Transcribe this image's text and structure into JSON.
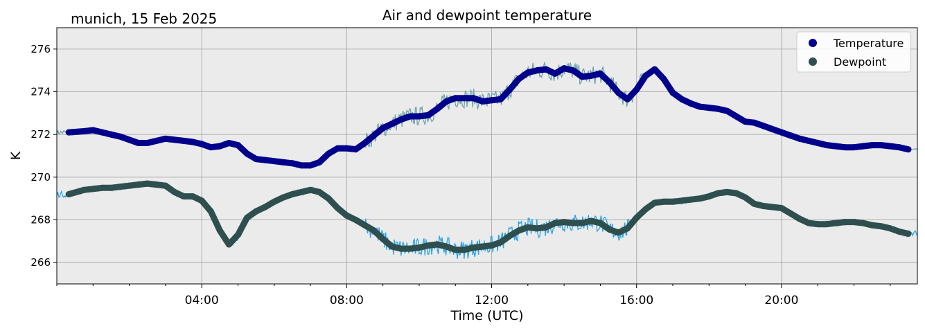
{
  "chart_data": {
    "type": "line",
    "title": "Air and dewpoint temperature",
    "subtitle": "munich, 15 Feb 2025",
    "xlabel": "Time (UTC)",
    "ylabel": "K",
    "x_unit": "hours",
    "xlim": [
      0,
      23.75
    ],
    "ylim": [
      265,
      277
    ],
    "xticks": [
      4,
      8,
      12,
      16,
      20
    ],
    "xtick_labels": [
      "04:00",
      "08:00",
      "12:00",
      "16:00",
      "20:00"
    ],
    "yticks": [
      266,
      268,
      270,
      272,
      274,
      276
    ],
    "ytick_labels": [
      "266",
      "268",
      "270",
      "272",
      "274",
      "276"
    ],
    "grid": true,
    "legend_position": "top-right",
    "background": "#ebebeb",
    "series": [
      {
        "name": "Temperature",
        "marker_color": "#00008b",
        "raw_color": "#6fa3a8",
        "x": [
          0.33,
          0.75,
          1,
          1.25,
          1.5,
          1.75,
          2,
          2.25,
          2.5,
          2.75,
          3,
          3.25,
          3.5,
          3.75,
          4,
          4.25,
          4.5,
          4.75,
          5,
          5.25,
          5.5,
          5.75,
          6,
          6.25,
          6.5,
          6.75,
          7,
          7.25,
          7.5,
          7.75,
          8,
          8.25,
          8.5,
          8.75,
          9,
          9.25,
          9.5,
          9.75,
          10,
          10.25,
          10.5,
          10.75,
          11,
          11.25,
          11.5,
          11.75,
          12,
          12.25,
          12.5,
          12.75,
          13,
          13.25,
          13.5,
          13.75,
          14,
          14.25,
          14.5,
          14.75,
          15,
          15.25,
          15.5,
          15.75,
          16,
          16.25,
          16.5,
          16.75,
          17,
          17.25,
          17.5,
          17.75,
          18,
          18.25,
          18.5,
          18.75,
          19,
          19.25,
          19.5,
          19.75,
          20,
          20.25,
          20.5,
          20.75,
          21,
          21.25,
          21.5,
          21.75,
          22,
          22.25,
          22.5,
          22.75,
          23,
          23.25,
          23.5
        ],
        "values": [
          272.1,
          272.15,
          272.2,
          272.1,
          272.0,
          271.9,
          271.75,
          271.6,
          271.6,
          271.7,
          271.8,
          271.75,
          271.7,
          271.65,
          271.55,
          271.4,
          271.45,
          271.6,
          271.5,
          271.1,
          270.85,
          270.8,
          270.75,
          270.7,
          270.65,
          270.55,
          270.55,
          270.7,
          271.1,
          271.35,
          271.35,
          271.3,
          271.6,
          271.95,
          272.3,
          272.5,
          272.7,
          272.85,
          272.85,
          272.9,
          273.2,
          273.55,
          273.7,
          273.7,
          273.7,
          273.55,
          273.6,
          273.65,
          274.1,
          274.6,
          274.9,
          275.0,
          275.05,
          274.85,
          275.1,
          275.0,
          274.7,
          274.75,
          274.85,
          274.45,
          273.95,
          273.65,
          274.1,
          274.75,
          275.05,
          274.6,
          273.95,
          273.65,
          273.45,
          273.3,
          273.25,
          273.2,
          273.1,
          272.85,
          272.6,
          272.55,
          272.4,
          272.25,
          272.1,
          271.95,
          271.8,
          271.7,
          271.6,
          271.5,
          271.45,
          271.4,
          271.4,
          271.45,
          271.5,
          271.5,
          271.45,
          271.4,
          271.3
        ]
      },
      {
        "name": "Dewpoint",
        "marker_color": "#2f4f4f",
        "raw_color": "#29a3e8",
        "x": [
          0.33,
          0.75,
          1,
          1.25,
          1.5,
          1.75,
          2,
          2.25,
          2.5,
          2.75,
          3,
          3.25,
          3.5,
          3.75,
          4,
          4.25,
          4.5,
          4.75,
          5,
          5.25,
          5.5,
          5.75,
          6,
          6.25,
          6.5,
          6.75,
          7,
          7.25,
          7.5,
          7.75,
          8,
          8.25,
          8.5,
          8.75,
          9,
          9.25,
          9.5,
          9.75,
          10,
          10.25,
          10.5,
          10.75,
          11,
          11.25,
          11.5,
          11.75,
          12,
          12.25,
          12.5,
          12.75,
          13,
          13.25,
          13.5,
          13.75,
          14,
          14.25,
          14.5,
          14.75,
          15,
          15.25,
          15.5,
          15.75,
          16,
          16.25,
          16.5,
          16.75,
          17,
          17.25,
          17.5,
          17.75,
          18,
          18.25,
          18.5,
          18.75,
          19,
          19.25,
          19.5,
          19.75,
          20,
          20.25,
          20.5,
          20.75,
          21,
          21.25,
          21.5,
          21.75,
          22,
          22.25,
          22.5,
          22.75,
          23,
          23.25,
          23.5
        ],
        "values": [
          269.2,
          269.4,
          269.45,
          269.5,
          269.5,
          269.55,
          269.6,
          269.65,
          269.7,
          269.65,
          269.6,
          269.3,
          269.1,
          269.1,
          268.9,
          268.4,
          267.5,
          266.85,
          267.3,
          268.1,
          268.4,
          268.6,
          268.85,
          269.05,
          269.2,
          269.3,
          269.4,
          269.3,
          269.0,
          268.55,
          268.2,
          268.0,
          267.75,
          267.5,
          267.1,
          266.75,
          266.65,
          266.65,
          266.7,
          266.8,
          266.85,
          266.75,
          266.6,
          266.6,
          266.7,
          266.75,
          266.8,
          266.95,
          267.25,
          267.5,
          267.65,
          267.6,
          267.65,
          267.85,
          267.9,
          267.85,
          267.85,
          267.95,
          267.85,
          267.55,
          267.4,
          267.6,
          268.1,
          268.5,
          268.8,
          268.85,
          268.85,
          268.9,
          268.95,
          269.0,
          269.1,
          269.25,
          269.3,
          269.25,
          269.05,
          268.75,
          268.65,
          268.6,
          268.55,
          268.3,
          268.05,
          267.85,
          267.8,
          267.8,
          267.85,
          267.9,
          267.9,
          267.85,
          267.75,
          267.7,
          267.6,
          267.45,
          267.35
        ]
      }
    ]
  }
}
